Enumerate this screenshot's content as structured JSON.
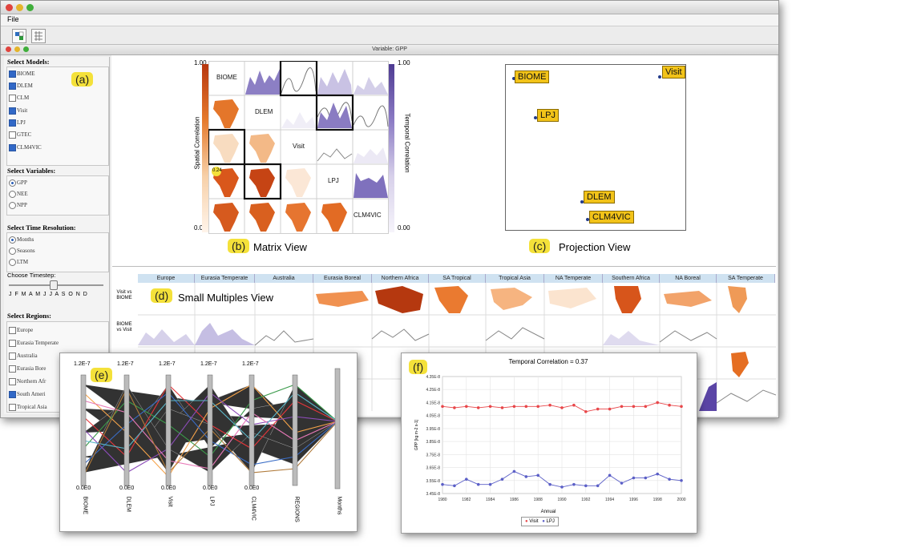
{
  "app": {
    "file_menu": "File",
    "variable_title": "Variable: GPP"
  },
  "sidebar": {
    "models_heading": "Select Models:",
    "models": [
      {
        "label": "BIOME",
        "checked": true
      },
      {
        "label": "DLEM",
        "checked": true
      },
      {
        "label": "CLM",
        "checked": false
      },
      {
        "label": "Visit",
        "checked": true
      },
      {
        "label": "LPJ",
        "checked": true
      },
      {
        "label": "GTEC",
        "checked": false
      },
      {
        "label": "CLM4VIC",
        "checked": true
      }
    ],
    "variables_heading": "Select Variables:",
    "variables": [
      {
        "label": "GPP",
        "selected": true
      },
      {
        "label": "NEE",
        "selected": false
      },
      {
        "label": "NPP",
        "selected": false
      }
    ],
    "time_heading": "Select Time Resolution:",
    "time_options": [
      {
        "label": "Months",
        "selected": true
      },
      {
        "label": "Seasons",
        "selected": false
      },
      {
        "label": "LTM",
        "selected": false
      }
    ],
    "timestep_label": "Choose Timestep:",
    "month_ticks": "J F M A M J J A S O N D",
    "regions_heading": "Select Regions:",
    "regions": [
      {
        "label": "Europe",
        "checked": false
      },
      {
        "label": "Eurasia Temperate",
        "checked": false
      },
      {
        "label": "Australia",
        "checked": false
      },
      {
        "label": "Eurasia Bore",
        "checked": false
      },
      {
        "label": "Northern Afr",
        "checked": false
      },
      {
        "label": "South Ameri",
        "checked": true
      },
      {
        "label": "Tropical Asia",
        "checked": false
      }
    ]
  },
  "tags": {
    "a": "(a)",
    "b": "(b)",
    "c": "(c)",
    "d": "(d)",
    "e": "(e)",
    "f": "(f)"
  },
  "matrix_view": {
    "caption": "Matrix View",
    "models": [
      "BIOME",
      "DLEM",
      "Visit",
      "LPJ",
      "CLM4VIC"
    ],
    "spatial_label": "Spatial Correlation",
    "temporal_label": "Temporal Correlation",
    "scale_max_left": "1.00",
    "scale_min_left": "0.00",
    "scale_max_right": "1.00",
    "scale_min_right": "0.00",
    "highlight_value": "0.24",
    "colors": {
      "spatial": "#e06a1c",
      "temporal": "#7a68b4"
    }
  },
  "projection_view": {
    "caption": "Projection View",
    "points": [
      {
        "label": "BIOME"
      },
      {
        "label": "Visit"
      },
      {
        "label": "LPJ"
      },
      {
        "label": "DLEM"
      },
      {
        "label": "CLM4VIC"
      }
    ]
  },
  "small_multiples": {
    "caption": "Small Multiples View",
    "regions": [
      "Europe",
      "Eurasia Temperate",
      "Australia",
      "Eurasia Boreal",
      "Northern Africa",
      "SA Tropical",
      "Tropical Asia",
      "NA Temperate",
      "Southern Africa",
      "NA Boreal",
      "SA Temperate"
    ],
    "row_labels": [
      "Visit vs BIOME",
      "BIOME vs Visit"
    ]
  },
  "parallel_coords": {
    "axes": [
      "BIOME",
      "DLEM",
      "Visit",
      "LPJ",
      "CLM4VIC",
      "REGIONS",
      "Months"
    ],
    "top_value": "1.2E-7",
    "bottom_value": "0.0E0"
  },
  "chart_data": {
    "type": "line",
    "title": "Temporal Correlation = 0.37",
    "xlabel": "Annual",
    "ylabel": "GPP [kg m-2 s-1]",
    "x": [
      1980,
      1981,
      1982,
      1983,
      1984,
      1985,
      1986,
      1987,
      1988,
      1989,
      1990,
      1991,
      1992,
      1993,
      1994,
      1995,
      1996,
      1997,
      1998,
      1999,
      2000
    ],
    "x_ticks": [
      "1980",
      "1982",
      "1984",
      "1986",
      "1988",
      "1990",
      "1992",
      "1994",
      "1996",
      "1998",
      "2000"
    ],
    "y_ticks": [
      "3.45E-8",
      "3.55E-8",
      "3.65E-8",
      "3.75E-8",
      "3.85E-8",
      "3.95E-8",
      "4.05E-8",
      "4.15E-8",
      "4.25E-8",
      "4.35E-8"
    ],
    "ylim": [
      3.45e-08,
      4.35e-08
    ],
    "series": [
      {
        "name": "Visit",
        "color": "#e8474a",
        "values": [
          4.12e-08,
          4.11e-08,
          4.12e-08,
          4.11e-08,
          4.12e-08,
          4.11e-08,
          4.12e-08,
          4.12e-08,
          4.12e-08,
          4.13e-08,
          4.11e-08,
          4.13e-08,
          4.08e-08,
          4.1e-08,
          4.1e-08,
          4.12e-08,
          4.12e-08,
          4.12e-08,
          4.15e-08,
          4.13e-08,
          4.12e-08
        ]
      },
      {
        "name": "LPJ",
        "color": "#5b5fc7",
        "values": [
          3.52e-08,
          3.51e-08,
          3.56e-08,
          3.52e-08,
          3.52e-08,
          3.56e-08,
          3.62e-08,
          3.58e-08,
          3.59e-08,
          3.52e-08,
          3.5e-08,
          3.52e-08,
          3.51e-08,
          3.51e-08,
          3.59e-08,
          3.53e-08,
          3.57e-08,
          3.57e-08,
          3.6e-08,
          3.56e-08,
          3.55e-08
        ]
      }
    ],
    "grid": true,
    "legend": "bottom"
  }
}
